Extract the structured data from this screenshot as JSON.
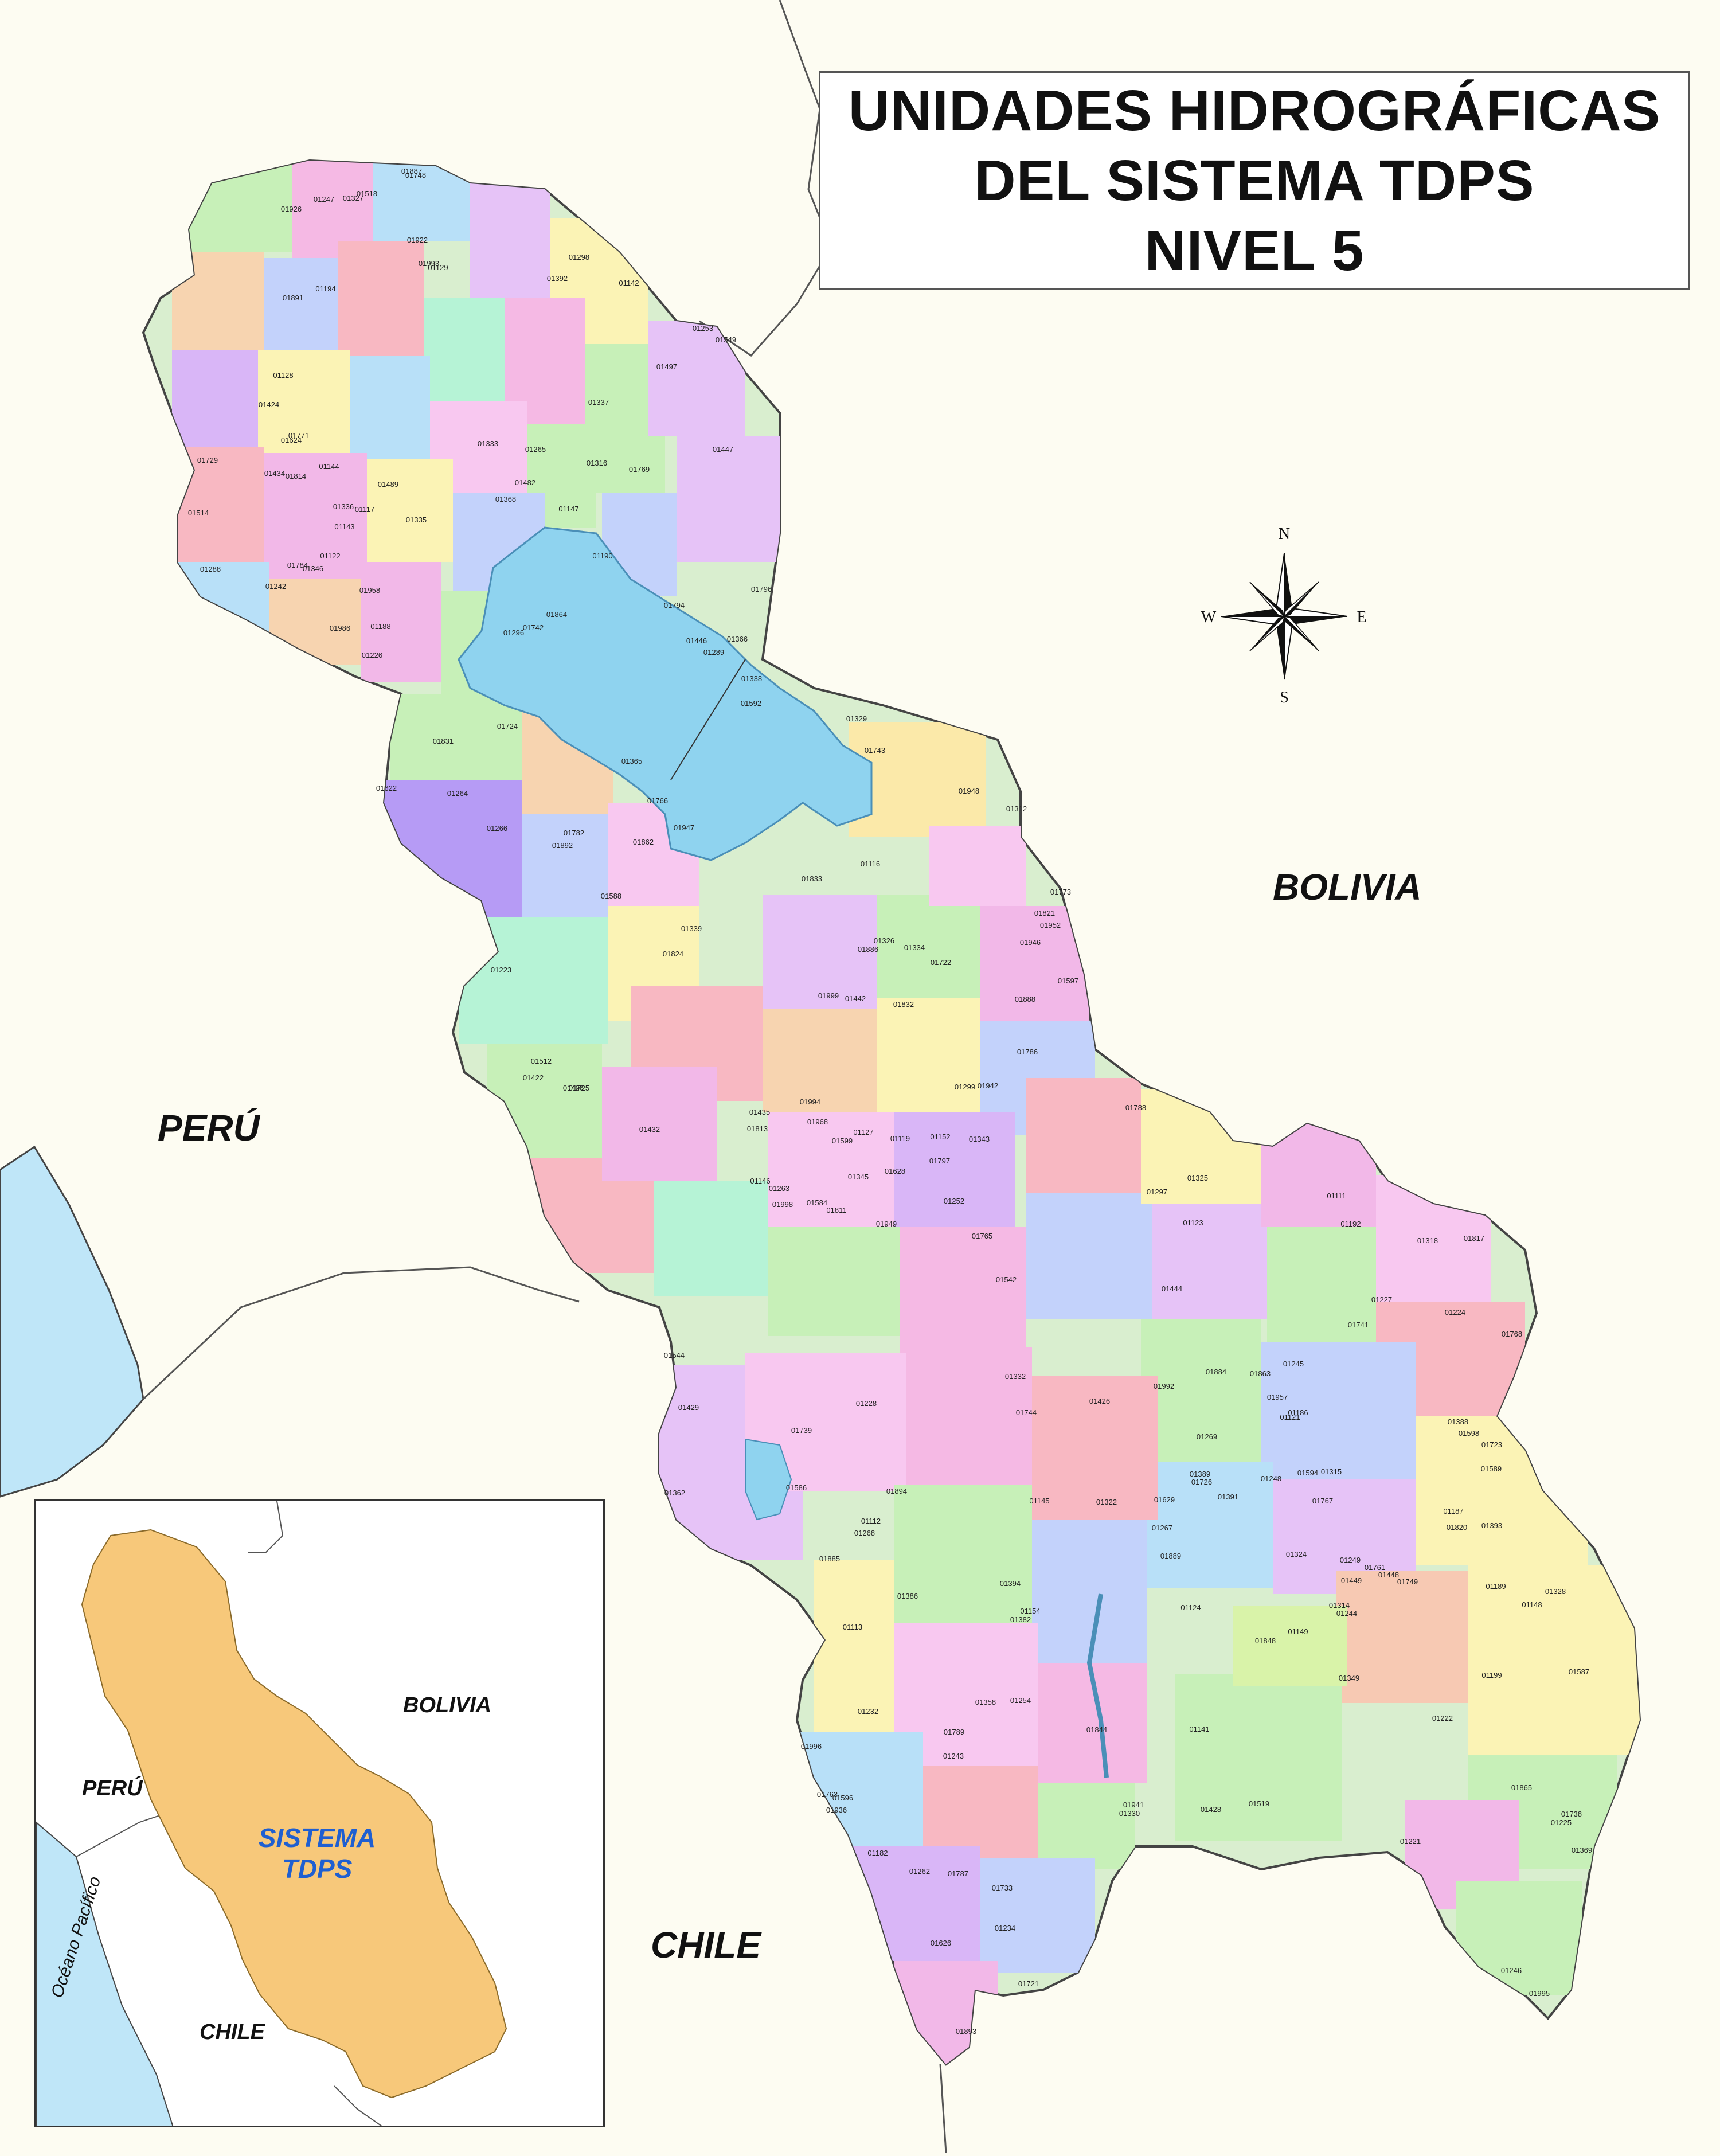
{
  "title": {
    "line1": "UNIDADES HIDROGRÁFICAS",
    "line2": "DEL SISTEMA TDPS",
    "line3": "NIVEL 5"
  },
  "countries": {
    "peru": "PERÚ",
    "bolivia": "BOLIVIA",
    "chile": "CHILE"
  },
  "compass": {
    "n": "N",
    "s": "S",
    "e": "E",
    "w": "W"
  },
  "inset": {
    "peru": "PERÚ",
    "bolivia": "BOLIVIA",
    "chile": "CHILE",
    "ocean": "Océano Pacífico",
    "system_line1": "SISTEMA",
    "system_line2": "TDPS"
  },
  "colors": {
    "lake": "#8fd3ef",
    "ocean": "#bfe6f8",
    "inset_system": "#f7c87a",
    "border": "#555555"
  },
  "unit_codes": [
    "01949",
    "01986",
    "01968",
    "01946",
    "01942",
    "01993",
    "01995",
    "01998",
    "01948",
    "01947",
    "01952",
    "01957",
    "01958",
    "01992",
    "01994",
    "01996",
    "01999",
    "01864",
    "01865",
    "01863",
    "01862",
    "01889",
    "01888",
    "01936",
    "01786",
    "01729",
    "01726",
    "01941",
    "01922",
    "01926",
    "01789",
    "01725",
    "01724",
    "01887",
    "01886",
    "01885",
    "01884",
    "01892",
    "01891",
    "01831",
    "01833",
    "01787",
    "01722",
    "01788",
    "01723",
    "01894",
    "01893",
    "01844",
    "01848",
    "01832",
    "01820",
    "01821",
    "01824",
    "01817",
    "01814",
    "01813",
    "01811",
    "01796",
    "01794",
    "01784",
    "01721",
    "01782",
    "01769",
    "01768",
    "01767",
    "01766",
    "01765",
    "01761",
    "01797",
    "01773",
    "01771",
    "01763",
    "01742",
    "01741",
    "01743",
    "01744",
    "01739",
    "01738",
    "01748",
    "01749",
    "01733",
    "01629",
    "01628",
    "01626",
    "01624",
    "01622",
    "01599",
    "01598",
    "01597",
    "01596",
    "01594",
    "01592",
    "01584",
    "01586",
    "01587",
    "01588",
    "01589",
    "01542",
    "01544",
    "01549",
    "01518",
    "01519",
    "01514",
    "01512",
    "01389",
    "01388",
    "01386",
    "01382",
    "01369",
    "01368",
    "01366",
    "01365",
    "01362",
    "01358",
    "01449",
    "01448",
    "01444",
    "01442",
    "01447",
    "01446",
    "01482",
    "01489",
    "01496",
    "01497",
    "01434",
    "01432",
    "01435",
    "01422",
    "01424",
    "01426",
    "01428",
    "01429",
    "01394",
    "01393",
    "01391",
    "01392",
    "01346",
    "01349",
    "01345",
    "01343",
    "01337",
    "01336",
    "01338",
    "01339",
    "01330",
    "01333",
    "01332",
    "01335",
    "01334",
    "01314",
    "01315",
    "01312",
    "01318",
    "01316",
    "01322",
    "01324",
    "01325",
    "01326",
    "01327",
    "01329",
    "01328",
    "01299",
    "01298",
    "01297",
    "01296",
    "01289",
    "01288",
    "01268",
    "01269",
    "01267",
    "01266",
    "01264",
    "01262",
    "01263",
    "01265",
    "01228",
    "01227",
    "01226",
    "01225",
    "01222",
    "01223",
    "01224",
    "01232",
    "01234",
    "01221",
    "01244",
    "01245",
    "01242",
    "01243",
    "01247",
    "01248",
    "01249",
    "01246",
    "01252",
    "01253",
    "01254",
    "01199",
    "01194",
    "01190",
    "01192",
    "01182",
    "01189",
    "01188",
    "01187",
    "01186",
    "01149",
    "01148",
    "01146",
    "01145",
    "01147",
    "01144",
    "01143",
    "01142",
    "01152",
    "01154",
    "01141",
    "01123",
    "01124",
    "01127",
    "01128",
    "01129",
    "01122",
    "01121",
    "01119",
    "01117",
    "01116",
    "01113",
    "01112",
    "01111"
  ]
}
